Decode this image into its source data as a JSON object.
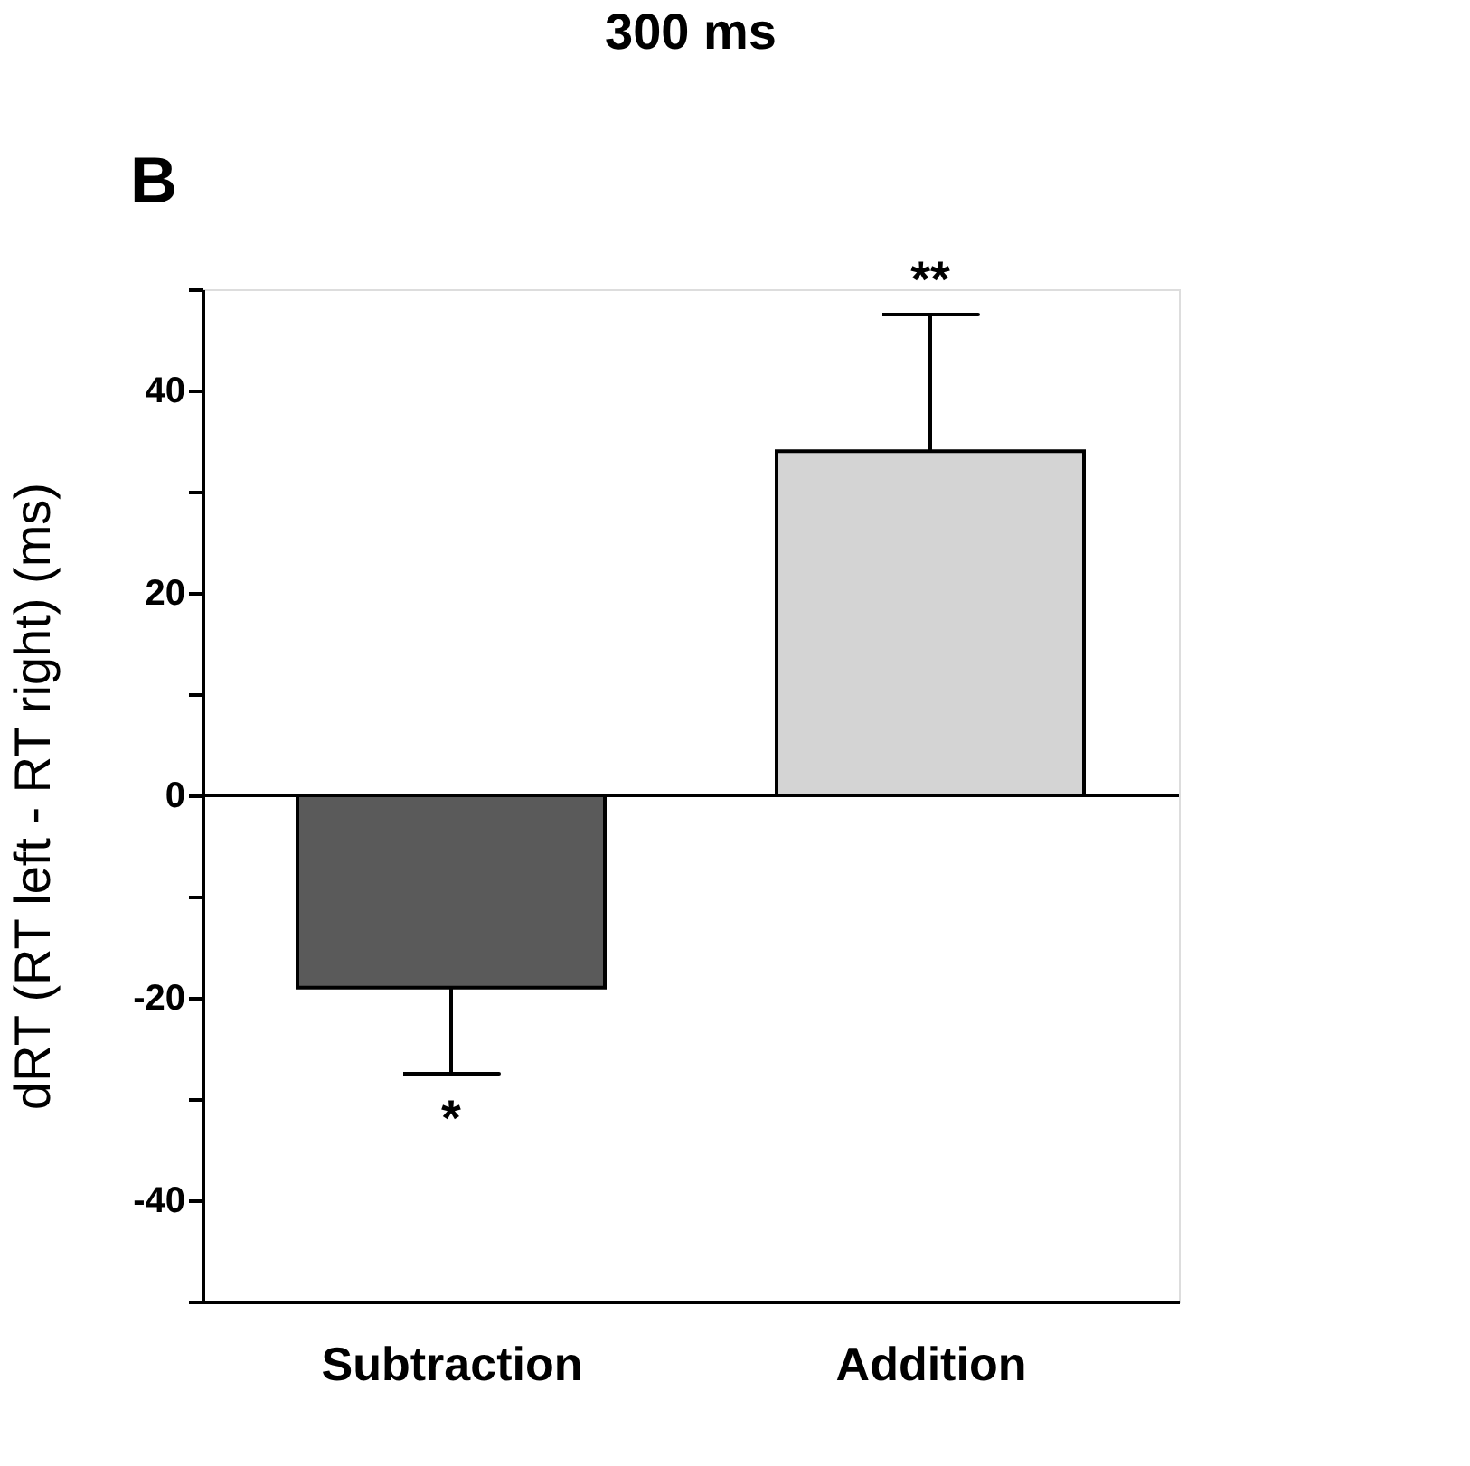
{
  "chart_data": {
    "type": "bar",
    "title": "300 ms",
    "ylabel": "dRT (RT left - RT right) (ms)",
    "categories": [
      "Subtraction",
      "Addition"
    ],
    "values": [
      -19,
      34
    ],
    "colors": [
      "#5a5a5a",
      "#d4d4d4"
    ],
    "errors": [
      [
        -27.5,
        -19
      ],
      [
        34,
        47.5
      ]
    ],
    "ylim": [
      -50,
      50
    ],
    "yticks": [
      {
        "value": -50,
        "label": null
      },
      -40,
      {
        "value": -30,
        "label": null
      },
      -20,
      {
        "value": -10,
        "label": null
      },
      0,
      {
        "value": 10,
        "label": null
      },
      20,
      {
        "value": 30,
        "label": null
      },
      40,
      {
        "value": 50,
        "label": null
      }
    ],
    "ref_lines": [
      {
        "axis": "y",
        "value": 0
      }
    ],
    "annotations": [
      "B",
      {
        "text": "*",
        "x": "Subtraction",
        "y": -27.5
      },
      {
        "text": "**",
        "x": "Addition",
        "y": 47.5
      }
    ],
    "grid": false
  }
}
